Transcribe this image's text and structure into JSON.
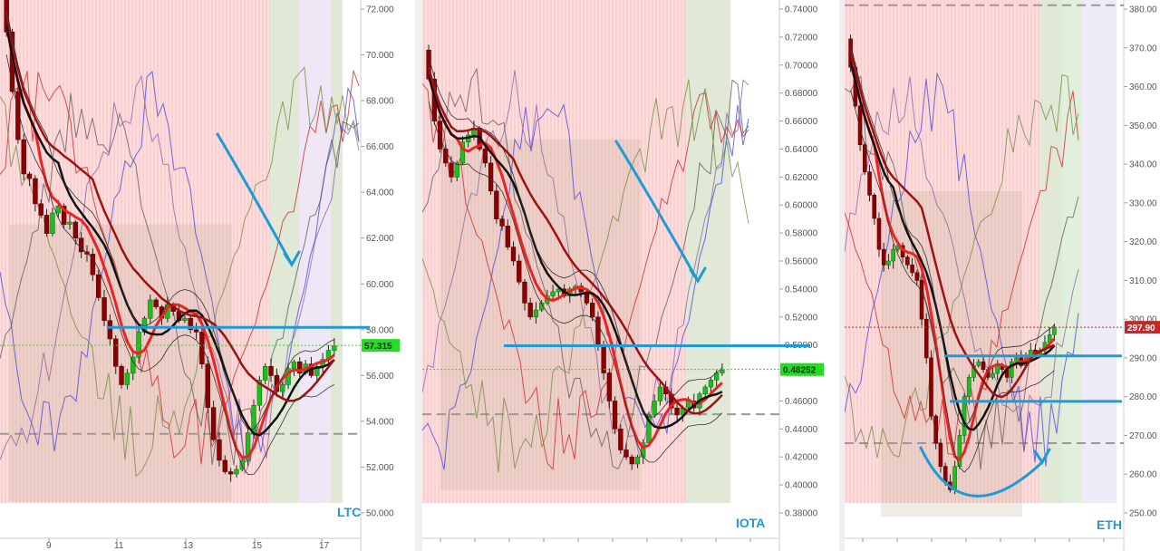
{
  "chart_data": [
    {
      "type": "candlestick",
      "symbol": "LTC",
      "y_ticks": [
        "72.000",
        "70.000",
        "68.000",
        "66.000",
        "64.000",
        "62.000",
        "60.000",
        "58.000",
        "56.000",
        "54.000",
        "52.000",
        "50.000"
      ],
      "x_ticks": [
        "9",
        "11",
        "13",
        "15",
        "17"
      ],
      "ylim": [
        49.8,
        72.6
      ],
      "last_price": "57.315",
      "last_price_value": 57.315,
      "last_price_color": "#22dd22",
      "closes": [
        71.0,
        68.4,
        66.3,
        64.8,
        64.6,
        63.5,
        63.0,
        62.2,
        63.1,
        63.4,
        62.6,
        62.7,
        62.0,
        61.4,
        61.3,
        60.4,
        59.4,
        58.4,
        57.6,
        56.4,
        55.6,
        56.1,
        56.8,
        57.9,
        58.5,
        59.3,
        59.0,
        58.5,
        59.1,
        58.8,
        58.4,
        58.5,
        58.0,
        57.9,
        56.5,
        54.6,
        53.2,
        52.3,
        51.8,
        51.7,
        51.9,
        52.3,
        53.5,
        54.7,
        55.8,
        56.4,
        56.0,
        55.3,
        55.6,
        56.3,
        56.6,
        56.1,
        56.5,
        56.0,
        56.4,
        56.7,
        57.1,
        57.3
      ]
    },
    {
      "type": "candlestick",
      "symbol": "IOTA",
      "y_ticks": [
        "0.74000",
        "0.72000",
        "0.70000",
        "0.68000",
        "0.66000",
        "0.64000",
        "0.62000",
        "0.60000",
        "0.58000",
        "0.56000",
        "0.54000",
        "0.52000",
        "0.50000",
        "0.48000",
        "0.46000",
        "0.44000",
        "0.42000",
        "0.40000",
        "0.38000"
      ],
      "ylim": [
        0.372,
        0.746
      ],
      "last_price": "0.48252",
      "last_price_value": 0.48252,
      "last_price_color": "#22dd22",
      "closes": [
        0.69,
        0.66,
        0.64,
        0.63,
        0.62,
        0.63,
        0.645,
        0.65,
        0.655,
        0.64,
        0.63,
        0.61,
        0.59,
        0.585,
        0.57,
        0.56,
        0.545,
        0.53,
        0.52,
        0.525,
        0.53,
        0.535,
        0.538,
        0.54,
        0.535,
        0.54,
        0.542,
        0.538,
        0.53,
        0.52,
        0.5,
        0.48,
        0.46,
        0.44,
        0.425,
        0.42,
        0.415,
        0.42,
        0.43,
        0.45,
        0.46,
        0.47,
        0.465,
        0.455,
        0.45,
        0.455,
        0.46,
        0.455,
        0.465,
        0.47,
        0.475,
        0.48,
        0.482
      ]
    },
    {
      "type": "candlestick",
      "symbol": "ETH",
      "y_ticks": [
        "380.00",
        "370.00",
        "360.00",
        "350.00",
        "340.00",
        "330.00",
        "320.00",
        "310.00",
        "300.00",
        "290.00",
        "280.00",
        "270.00",
        "260.00",
        "250.00"
      ],
      "ylim": [
        246.5,
        382.5
      ],
      "last_price": "297.90",
      "last_price_value": 297.9,
      "last_price_color": "#c62828",
      "closes": [
        365,
        355,
        345,
        338,
        332,
        326,
        318,
        314,
        315,
        318,
        319,
        316,
        314,
        312,
        310,
        300,
        290,
        275,
        268,
        262,
        258,
        256,
        262,
        270,
        280,
        285,
        288,
        289,
        287,
        285,
        286,
        288,
        287,
        285,
        289,
        290,
        288,
        290,
        292,
        291,
        292,
        294,
        296,
        297.9
      ]
    }
  ]
}
